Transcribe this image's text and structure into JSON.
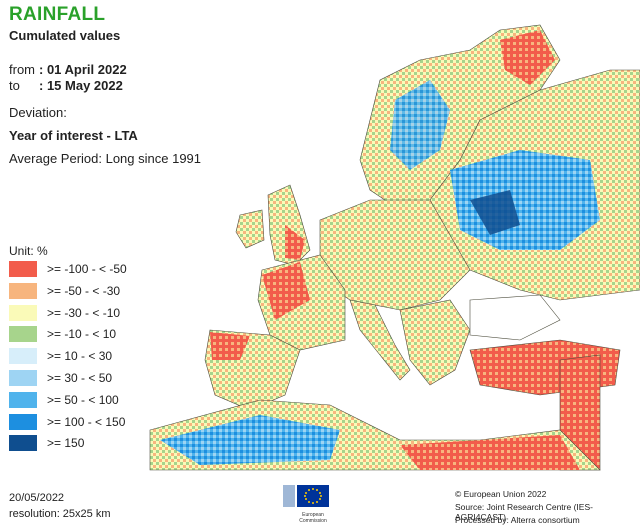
{
  "header": {
    "title": "RAINFALL",
    "subtitle": "Cumulated values",
    "from_label": "from",
    "from_value": ": 01 April 2022",
    "to_label": "to",
    "to_value": ": 15 May 2022"
  },
  "deviation": {
    "heading": "Deviation:",
    "year": "Year of interest - LTA",
    "average": "Average Period: Long since 1991"
  },
  "legend": {
    "unit": "Unit:  %",
    "items": [
      {
        "label": ">= -100 - < -50",
        "color": "#f25c4b"
      },
      {
        "label": ">= -50 - < -30",
        "color": "#f7b57e"
      },
      {
        "label": ">= -30 - < -10",
        "color": "#fafab8"
      },
      {
        "label": ">= -10 - < 10",
        "color": "#a7d48c"
      },
      {
        "label": ">= 10 - < 30",
        "color": "#d7eefa"
      },
      {
        "label": ">= 30 - < 50",
        "color": "#9ed4f3"
      },
      {
        "label": ">= 50 - < 100",
        "color": "#4fb3ec"
      },
      {
        "label": ">= 100 - < 150",
        "color": "#1d8fe0"
      },
      {
        "label": ">= 150",
        "color": "#0f4e8f"
      }
    ]
  },
  "footer": {
    "date": "20/05/2022",
    "resolution": "resolution:  25x25 km",
    "copyright": "© European Union 2022",
    "source": "Source: Joint Research Centre (IES-AGRI4CAST)",
    "processed": "Processed by: Alterra consortium",
    "logo_text": "European Commission"
  },
  "map_colors": {
    "sea": "#ffffff",
    "border": "#4a4a3a"
  }
}
